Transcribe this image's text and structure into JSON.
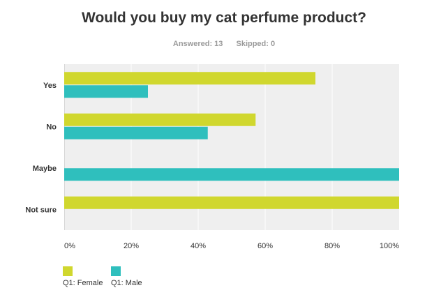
{
  "chart_data": {
    "type": "bar",
    "orientation": "horizontal",
    "title": "Would you buy my cat perfume product?",
    "stats": {
      "answered_label": "Answered: 13",
      "skipped_label": "Skipped: 0"
    },
    "categories": [
      "Yes",
      "No",
      "Maybe",
      "Not sure"
    ],
    "series": [
      {
        "name": "Q1: Female",
        "color": "#d0d72e",
        "values": [
          75,
          57.14,
          0,
          100
        ]
      },
      {
        "name": "Q1: Male",
        "color": "#2fbfbd",
        "values": [
          25,
          42.86,
          100,
          0
        ]
      }
    ],
    "xlim": [
      0,
      100
    ],
    "x_ticks": [
      "0%",
      "20%",
      "40%",
      "60%",
      "80%",
      "100%"
    ],
    "grid": true,
    "legend_position": "bottom-left",
    "plot_background": "#efefef"
  }
}
